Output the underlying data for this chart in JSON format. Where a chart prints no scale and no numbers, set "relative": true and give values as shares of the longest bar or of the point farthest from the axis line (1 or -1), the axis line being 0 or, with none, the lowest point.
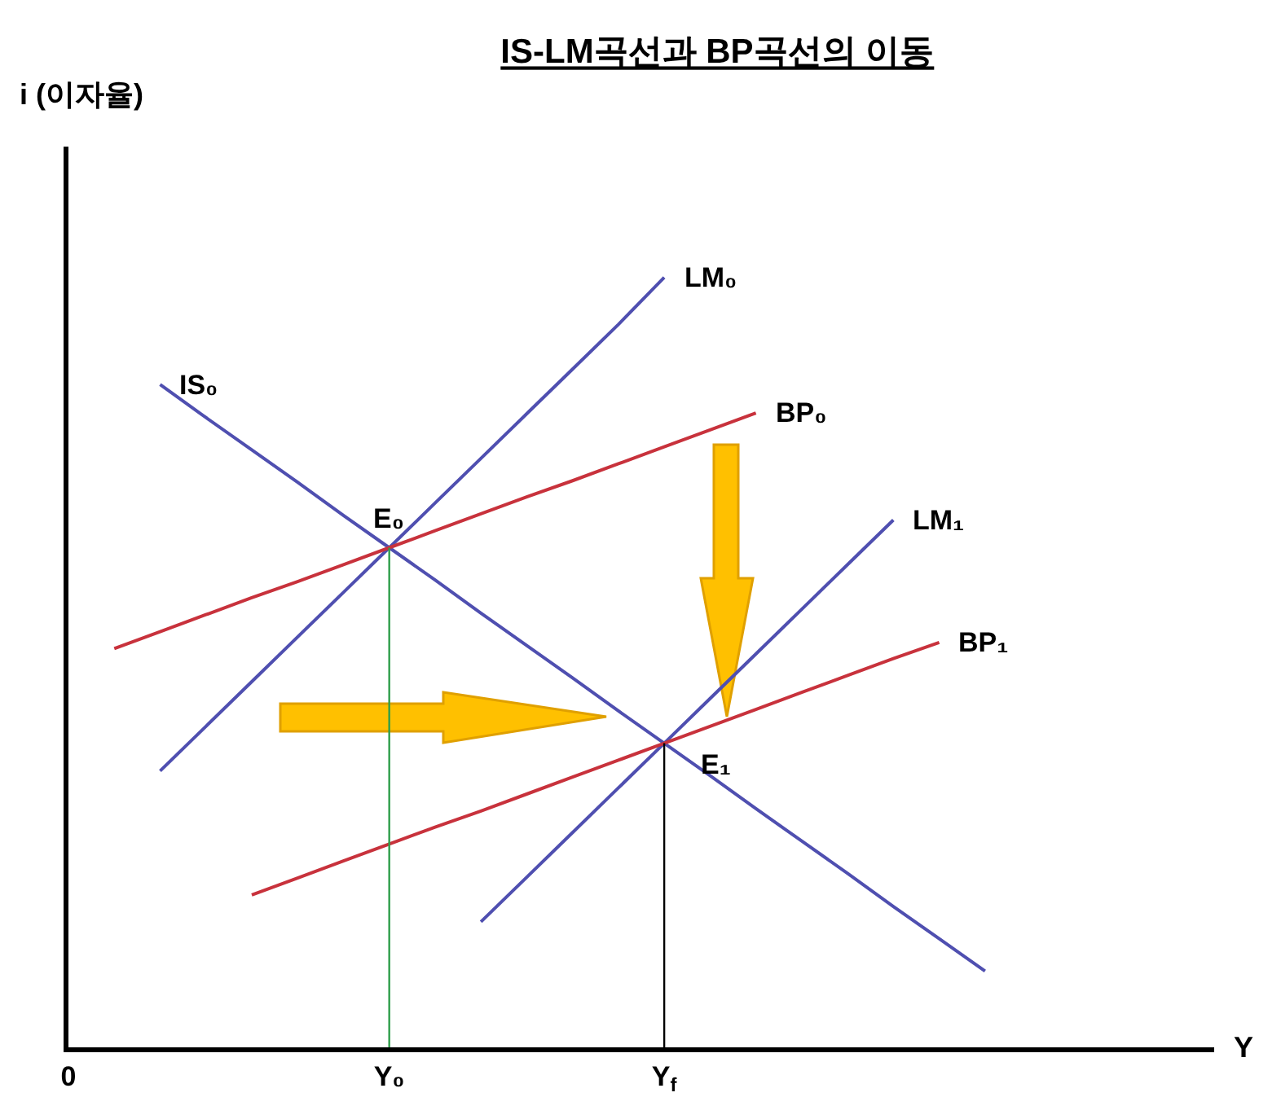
{
  "chart_data": {
    "type": "line",
    "title": "IS-LM곡선과 BP곡선의 이동",
    "xlabel": "Y",
    "relative": true,
    "marker": "none",
    "line_style": "solid",
    "legend": false,
    "tick_labels": "x",
    "categories": [
      "0",
      null,
      null,
      null,
      null,
      null,
      null,
      "Y₀",
      null,
      null,
      null,
      null,
      null,
      "Y$_{f}$",
      null,
      null,
      null,
      null,
      null,
      null,
      null,
      null,
      null,
      null,
      null,
      null
    ],
    "series": [
      {
        "name": "LM₀",
        "color": "#4f4fb0",
        "values": [
          null,
          null,
          0.359,
          0.417,
          0.475,
          0.533,
          0.591,
          0.649,
          0.707,
          0.765,
          0.823,
          0.881,
          0.939,
          1.0,
          null,
          null,
          null,
          null,
          null,
          null,
          null,
          null,
          null,
          null,
          null,
          null
        ]
      },
      {
        "name": "IS₀",
        "color": "#4f4fb0",
        "values": [
          null,
          null,
          0.861,
          0.818,
          0.776,
          0.734,
          0.691,
          0.649,
          0.607,
          0.564,
          0.522,
          0.48,
          0.437,
          0.395,
          0.353,
          0.31,
          0.268,
          0.226,
          0.183,
          0.141,
          0.099,
          null,
          null,
          null,
          null,
          null
        ]
      },
      {
        "name": "BP₀",
        "color": "#c8323c",
        "values": [
          null,
          0.518,
          0.54,
          0.562,
          0.584,
          0.605,
          0.627,
          0.649,
          0.671,
          0.693,
          0.715,
          0.736,
          0.758,
          0.78,
          0.802,
          0.824,
          null,
          null,
          null,
          null,
          null,
          null,
          null,
          null,
          null,
          null
        ]
      },
      {
        "name": "LM₁",
        "color": "#4f4fb0",
        "values": [
          null,
          null,
          null,
          null,
          null,
          null,
          null,
          null,
          null,
          0.163,
          0.221,
          0.279,
          0.337,
          0.395,
          0.453,
          0.511,
          0.569,
          0.627,
          0.685,
          null,
          null,
          null,
          null,
          null,
          null,
          null
        ]
      },
      {
        "name": "BP₁",
        "color": "#c8323c",
        "values": [
          null,
          null,
          null,
          null,
          0.198,
          0.22,
          0.242,
          0.264,
          0.286,
          0.307,
          0.329,
          0.351,
          0.373,
          0.395,
          0.417,
          0.439,
          0.461,
          0.483,
          0.505,
          0.526,
          null,
          null,
          null,
          null,
          null,
          null
        ]
      }
    ],
    "ref_lines": [
      {
        "axis": "x",
        "value": "Y₀",
        "color": "#2e9e4a"
      },
      {
        "axis": "x",
        "value": "Y$_{f}$",
        "color": "#000000"
      }
    ],
    "annotations": [
      "i (이자율)",
      {
        "text": "E₀",
        "x": "Y₀",
        "y": 0.649
      },
      {
        "text": "E₁",
        "x": "Y$_{f}$",
        "y": 0.395
      }
    ]
  }
}
